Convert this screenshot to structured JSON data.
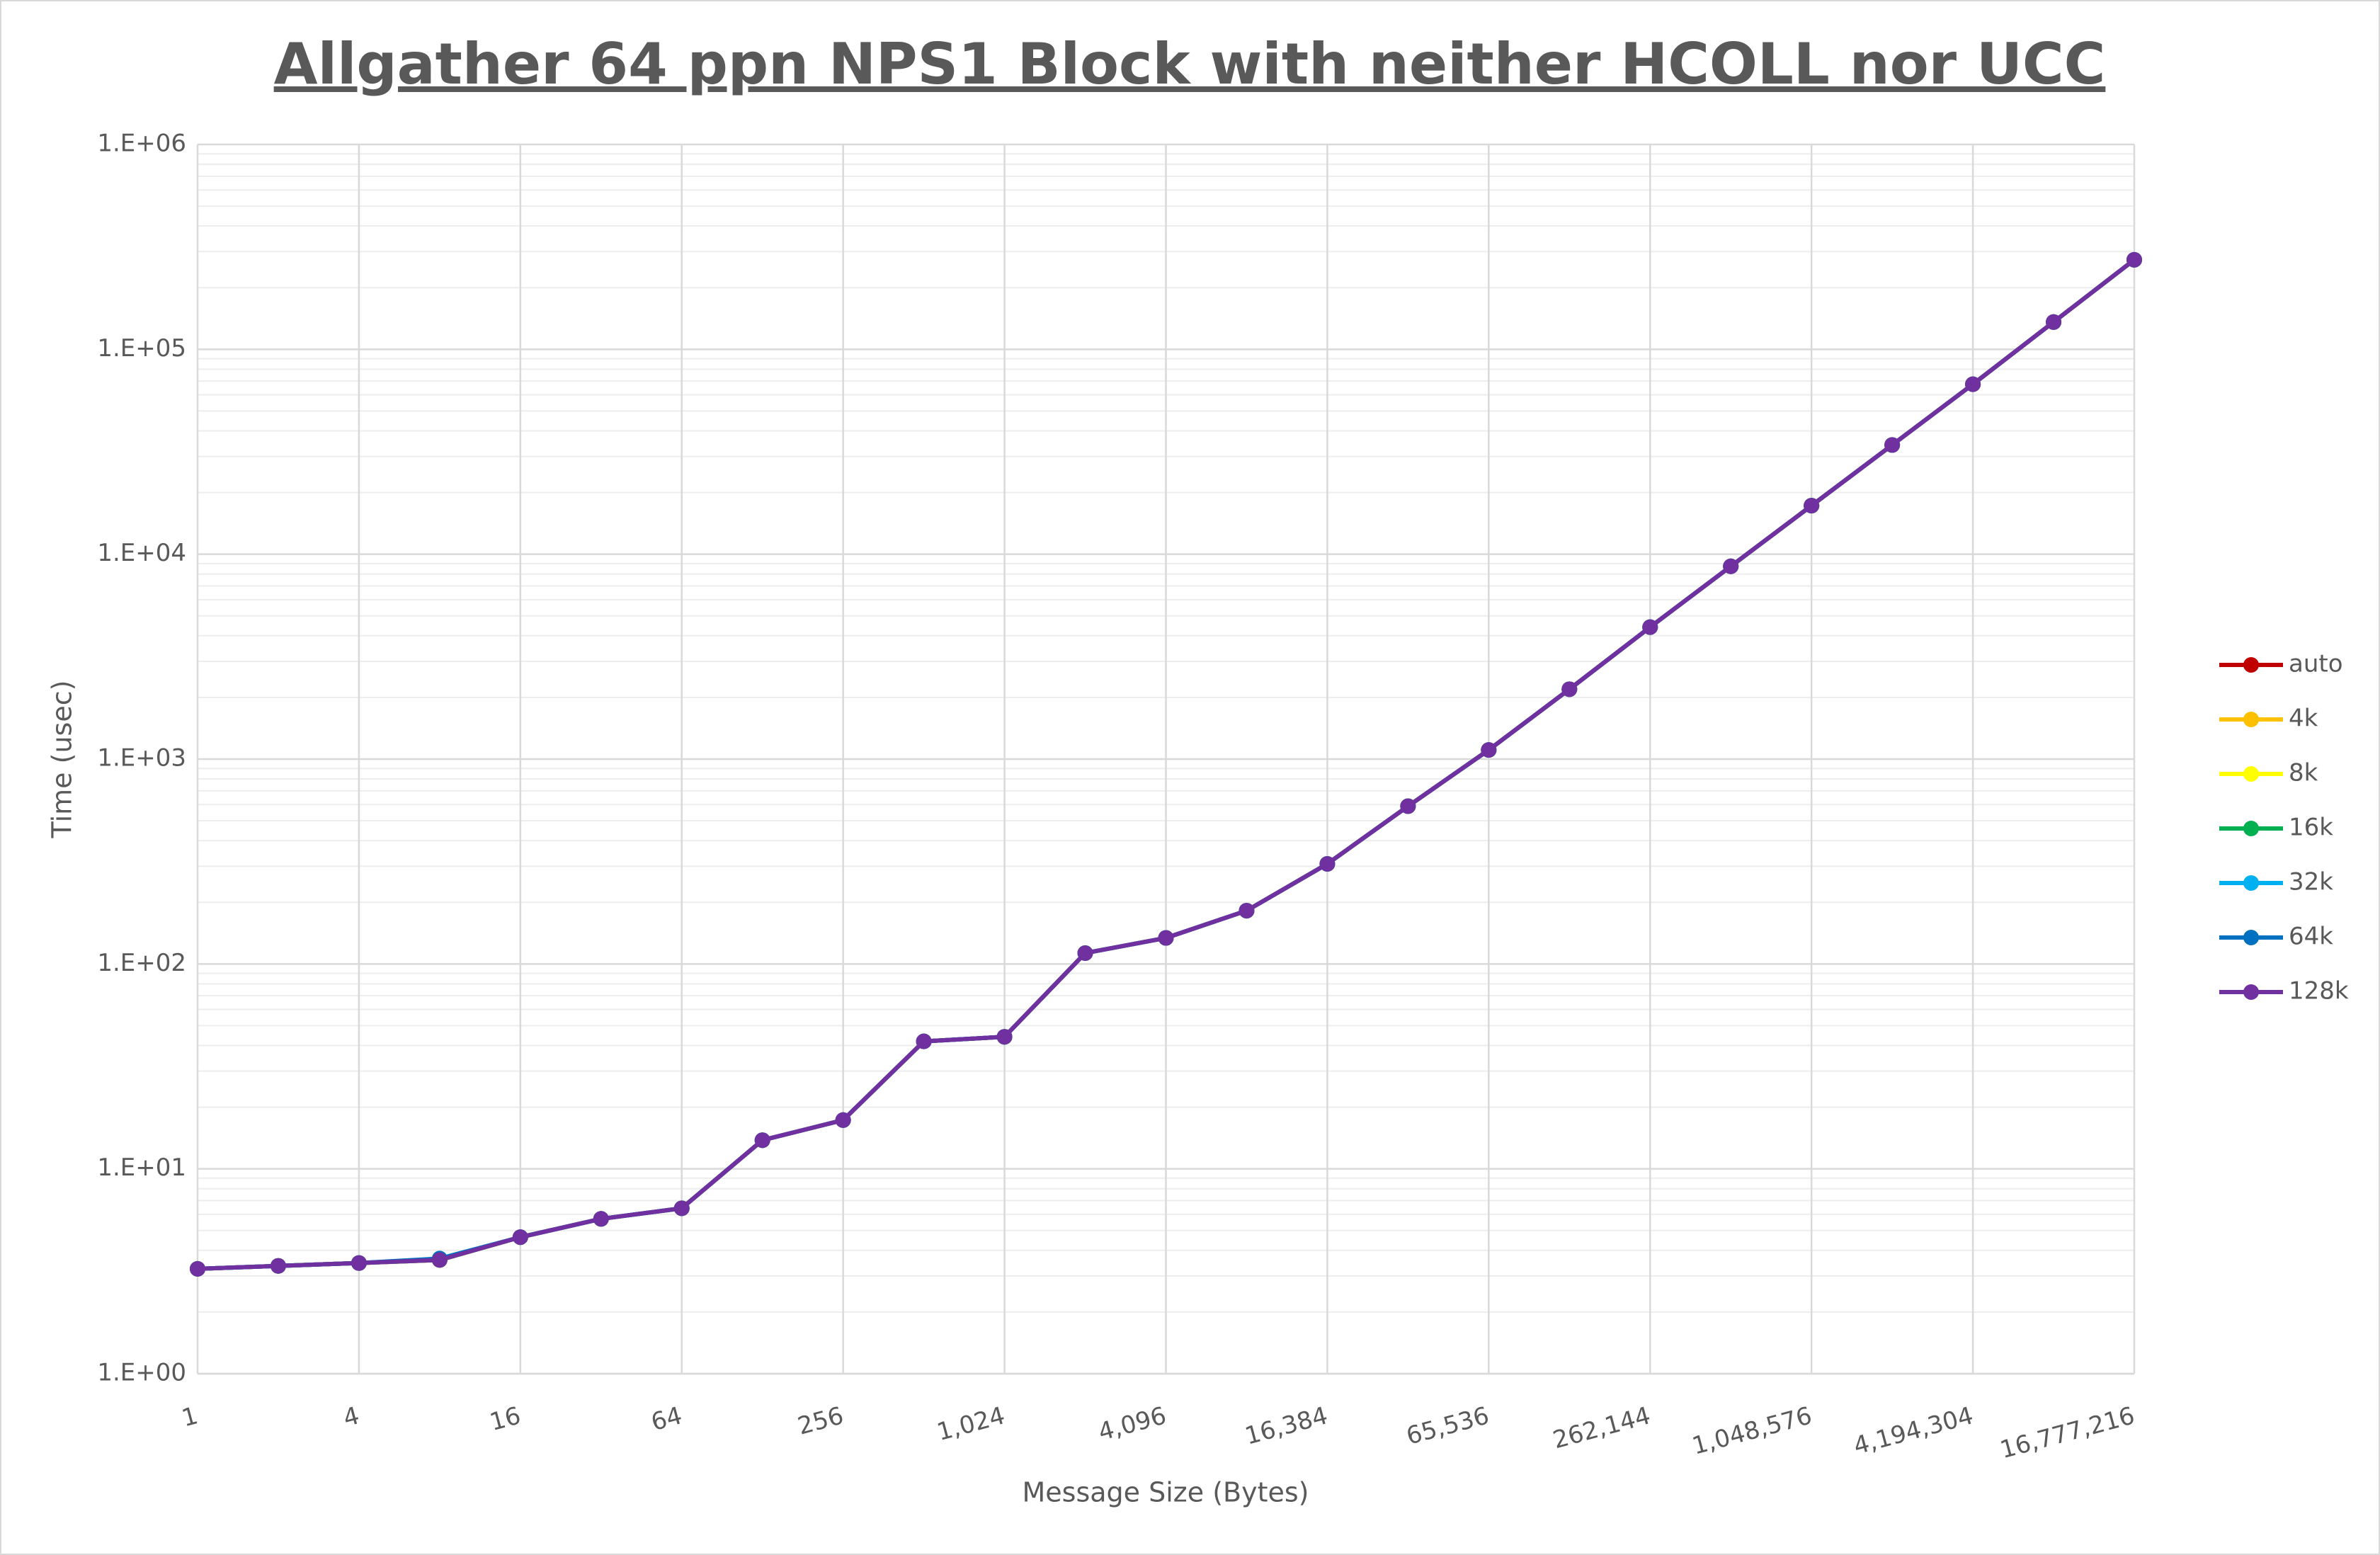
{
  "chart_data": {
    "type": "line",
    "title": "Allgather 64 ppn NPS1 Block with neither HCOLL nor UCC",
    "x_label": "Message Size (Bytes)",
    "y_label": "Time (usec)",
    "x_log_base": 2,
    "y_log_base": 10,
    "grid": true,
    "minor_grid": true,
    "legend": "right",
    "x": [
      1,
      2,
      4,
      8,
      16,
      32,
      64,
      128,
      256,
      512,
      1024,
      2048,
      4096,
      8192,
      16384,
      32768,
      65536,
      131072,
      262144,
      524288,
      1048576,
      2097152,
      4194304,
      8388608,
      16777216
    ],
    "xlim": [
      1,
      16777216
    ],
    "xticks": [
      1,
      4,
      16,
      64,
      256,
      {
        "value": 1024,
        "label": "1,024"
      },
      {
        "value": 4096,
        "label": "4,096"
      },
      {
        "value": 16384,
        "label": "16,384"
      },
      {
        "value": 65536,
        "label": "65,536"
      },
      {
        "value": 262144,
        "label": "262,144"
      },
      {
        "value": 1048576,
        "label": "1,048,576"
      },
      {
        "value": 4194304,
        "label": "4,194,304"
      },
      {
        "value": 16777216,
        "label": "16,777,216"
      }
    ],
    "ylim": [
      1,
      1000000
    ],
    "yticks": [
      {
        "value": 1,
        "label": "1.E+00"
      },
      {
        "value": 10,
        "label": "1.E+01"
      },
      {
        "value": 100,
        "label": "1.E+02"
      },
      {
        "value": 1000,
        "label": "1.E+03"
      },
      {
        "value": 10000,
        "label": "1.E+04"
      },
      {
        "value": 100000,
        "label": "1.E+05"
      },
      {
        "value": 1000000,
        "label": "1.E+06"
      }
    ],
    "series": [
      {
        "name": "auto",
        "color": "#c00000",
        "values": [
          3.25,
          3.36,
          3.47,
          3.59,
          4.64,
          5.7,
          6.42,
          13.8,
          17.3,
          41.9,
          44.1,
          113,
          134,
          182,
          308,
          589,
          1108,
          2193,
          4406,
          8730,
          17260,
          34130,
          67550,
          135900,
          273600
        ]
      },
      {
        "name": "4k",
        "color": "#ffc000",
        "values": [
          3.25,
          3.36,
          3.47,
          3.59,
          4.64,
          5.7,
          6.42,
          13.8,
          17.3,
          41.9,
          44.1,
          113,
          134,
          182,
          308,
          589,
          1108,
          2193,
          4406,
          8730,
          17260,
          34130,
          67550,
          135900,
          273600
        ]
      },
      {
        "name": "8k",
        "color": "#ffff00",
        "values": [
          3.25,
          3.36,
          3.47,
          3.59,
          4.64,
          5.7,
          6.42,
          13.8,
          17.3,
          41.9,
          44.1,
          113,
          134,
          182,
          308,
          589,
          1108,
          2193,
          4406,
          8730,
          17260,
          34130,
          67550,
          135900,
          273600
        ]
      },
      {
        "name": "16k",
        "color": "#00b050",
        "values": [
          3.25,
          3.36,
          3.47,
          3.59,
          4.64,
          5.7,
          6.42,
          13.8,
          17.3,
          41.9,
          44.1,
          113,
          134,
          182,
          308,
          589,
          1108,
          2193,
          4406,
          8730,
          17260,
          34130,
          67550,
          135900,
          273600
        ]
      },
      {
        "name": "32k",
        "color": "#00b0f0",
        "values": [
          3.25,
          3.36,
          3.47,
          3.62,
          4.64,
          5.7,
          6.42,
          13.8,
          17.3,
          41.9,
          44.1,
          113,
          134,
          182,
          308,
          589,
          1108,
          2193,
          4406,
          8730,
          17260,
          34130,
          67550,
          135900,
          273600
        ]
      },
      {
        "name": "64k",
        "color": "#0070c0",
        "values": [
          3.25,
          3.36,
          3.47,
          3.65,
          4.64,
          5.7,
          6.42,
          13.8,
          17.3,
          41.9,
          44.1,
          113,
          134,
          182,
          308,
          589,
          1108,
          2193,
          4406,
          8730,
          17260,
          34130,
          67550,
          135900,
          273600
        ]
      },
      {
        "name": "128k",
        "color": "#7030a0",
        "values": [
          3.25,
          3.36,
          3.47,
          3.59,
          4.64,
          5.7,
          6.42,
          13.8,
          17.3,
          41.9,
          44.1,
          113,
          134,
          182,
          308,
          589,
          1108,
          2193,
          4406,
          8730,
          17260,
          34130,
          67550,
          135900,
          273600
        ]
      }
    ]
  }
}
